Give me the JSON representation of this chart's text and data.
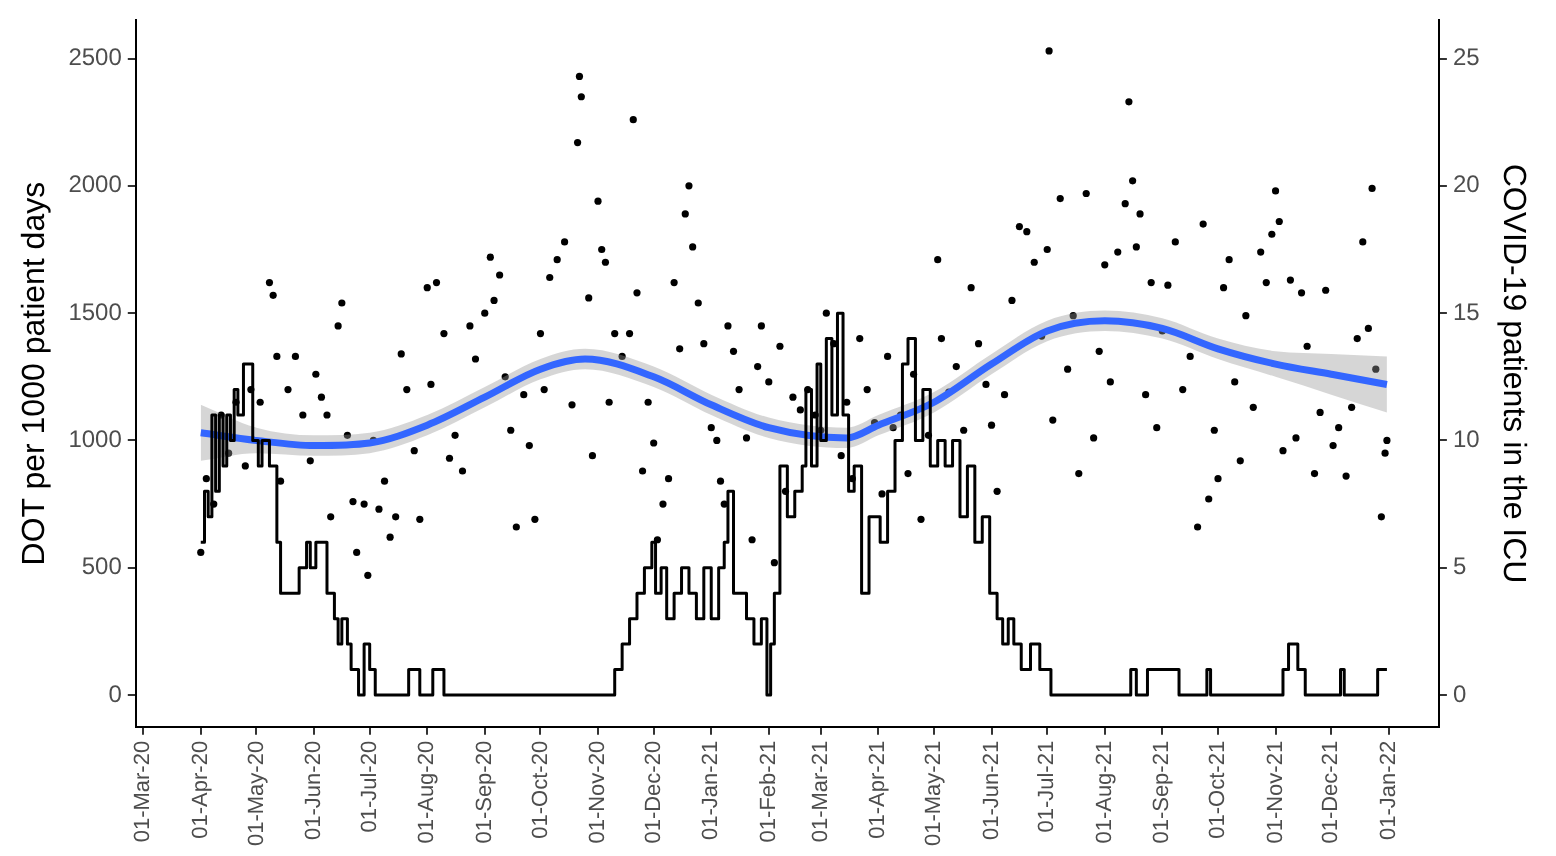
{
  "chart_data": {
    "type": "scatter",
    "ylabel": "DOT per 1000 patient days",
    "y2label": "COVID-19 patients in the ICU",
    "xlim": [
      "2020-02-26",
      "2022-01-28"
    ],
    "xticks": [
      {
        "value": "2020-03-01",
        "label": "01-Mar-20"
      },
      {
        "value": "2020-04-01",
        "label": "01-Apr-20"
      },
      {
        "value": "2020-05-01",
        "label": "01-May-20"
      },
      {
        "value": "2020-06-01",
        "label": "01-Jun-20"
      },
      {
        "value": "2020-07-01",
        "label": "01-Jul-20"
      },
      {
        "value": "2020-08-01",
        "label": "01-Aug-20"
      },
      {
        "value": "2020-09-01",
        "label": "01-Sep-20"
      },
      {
        "value": "2020-10-01",
        "label": "01-Oct-20"
      },
      {
        "value": "2020-11-01",
        "label": "01-Nov-20"
      },
      {
        "value": "2020-12-01",
        "label": "01-Dec-20"
      },
      {
        "value": "2021-01-01",
        "label": "01-Jan-21"
      },
      {
        "value": "2021-02-01",
        "label": "01-Feb-21"
      },
      {
        "value": "2021-03-01",
        "label": "01-Mar-21"
      },
      {
        "value": "2021-04-01",
        "label": "01-Apr-21"
      },
      {
        "value": "2021-05-01",
        "label": "01-May-21"
      },
      {
        "value": "2021-06-01",
        "label": "01-Jun-21"
      },
      {
        "value": "2021-07-01",
        "label": "01-Jul-21"
      },
      {
        "value": "2021-08-01",
        "label": "01-Aug-21"
      },
      {
        "value": "2021-09-01",
        "label": "01-Sep-21"
      },
      {
        "value": "2021-10-01",
        "label": "01-Oct-21"
      },
      {
        "value": "2021-11-01",
        "label": "01-Nov-21"
      },
      {
        "value": "2021-12-01",
        "label": "01-Dec-21"
      },
      {
        "value": "2022-01-01",
        "label": "01-Jan-22"
      }
    ],
    "ylim": [
      -125,
      2650
    ],
    "yticks": [
      0,
      500,
      1000,
      1500,
      2000,
      2500
    ],
    "y2lim": [
      -1.25,
      26.5
    ],
    "y2ticks": [
      0,
      5,
      10,
      15,
      20,
      25
    ],
    "grid": false,
    "legend": false,
    "series": [
      {
        "type": "scatter",
        "marker": "circle",
        "color": "#000000",
        "x": [
          "2020-04-01",
          "2020-04-04",
          "2020-04-08",
          "2020-04-12",
          "2020-04-16",
          "2020-04-20",
          "2020-04-25",
          "2020-04-28",
          "2020-05-03",
          "2020-05-08",
          "2020-05-10",
          "2020-05-12",
          "2020-05-14",
          "2020-05-18",
          "2020-05-22",
          "2020-05-26",
          "2020-05-30",
          "2020-06-02",
          "2020-06-05",
          "2020-06-08",
          "2020-06-10",
          "2020-06-14",
          "2020-06-16",
          "2020-06-19",
          "2020-06-22",
          "2020-06-24",
          "2020-06-28",
          "2020-06-30",
          "2020-07-03",
          "2020-07-06",
          "2020-07-09",
          "2020-07-12",
          "2020-07-15",
          "2020-07-18",
          "2020-07-21",
          "2020-07-25",
          "2020-07-28",
          "2020-08-01",
          "2020-08-03",
          "2020-08-06",
          "2020-08-10",
          "2020-08-13",
          "2020-08-16",
          "2020-08-20",
          "2020-08-24",
          "2020-08-27",
          "2020-09-01",
          "2020-09-04",
          "2020-09-06",
          "2020-09-09",
          "2020-09-12",
          "2020-09-15",
          "2020-09-18",
          "2020-09-22",
          "2020-09-25",
          "2020-09-28",
          "2020-10-01",
          "2020-10-03",
          "2020-10-06",
          "2020-10-10",
          "2020-10-14",
          "2020-10-18",
          "2020-10-21",
          "2020-10-22",
          "2020-10-23",
          "2020-10-27",
          "2020-10-29",
          "2020-11-01",
          "2020-11-03",
          "2020-11-05",
          "2020-11-07",
          "2020-11-10",
          "2020-11-14",
          "2020-11-18",
          "2020-11-20",
          "2020-11-22",
          "2020-11-25",
          "2020-11-28",
          "2020-12-01",
          "2020-12-03",
          "2020-12-06",
          "2020-12-09",
          "2020-12-12",
          "2020-12-15",
          "2020-12-18",
          "2020-12-20",
          "2020-12-22",
          "2020-12-25",
          "2020-12-28",
          "2021-01-01",
          "2021-01-04",
          "2021-01-06",
          "2021-01-08",
          "2021-01-10",
          "2021-01-13",
          "2021-01-16",
          "2021-01-20",
          "2021-01-23",
          "2021-01-26",
          "2021-01-28",
          "2021-02-01",
          "2021-02-04",
          "2021-02-07",
          "2021-02-10",
          "2021-02-14",
          "2021-02-18",
          "2021-02-22",
          "2021-02-26",
          "2021-03-01",
          "2021-03-04",
          "2021-03-08",
          "2021-03-12",
          "2021-03-15",
          "2021-03-18",
          "2021-03-22",
          "2021-03-26",
          "2021-03-30",
          "2021-04-03",
          "2021-04-06",
          "2021-04-09",
          "2021-04-13",
          "2021-04-17",
          "2021-04-20",
          "2021-04-24",
          "2021-04-28",
          "2021-05-03",
          "2021-05-05",
          "2021-05-09",
          "2021-05-13",
          "2021-05-17",
          "2021-05-21",
          "2021-05-25",
          "2021-05-29",
          "2021-06-01",
          "2021-06-04",
          "2021-06-08",
          "2021-06-12",
          "2021-06-16",
          "2021-06-20",
          "2021-06-24",
          "2021-06-28",
          "2021-07-01",
          "2021-07-02",
          "2021-07-04",
          "2021-07-08",
          "2021-07-12",
          "2021-07-15",
          "2021-07-18",
          "2021-07-22",
          "2021-07-26",
          "2021-07-29",
          "2021-08-01",
          "2021-08-04",
          "2021-08-08",
          "2021-08-12",
          "2021-08-14",
          "2021-08-16",
          "2021-08-18",
          "2021-08-20",
          "2021-08-23",
          "2021-08-26",
          "2021-08-29",
          "2021-09-01",
          "2021-09-04",
          "2021-09-08",
          "2021-09-12",
          "2021-09-16",
          "2021-09-20",
          "2021-09-23",
          "2021-09-26",
          "2021-09-29",
          "2021-10-01",
          "2021-10-04",
          "2021-10-07",
          "2021-10-10",
          "2021-10-13",
          "2021-10-16",
          "2021-10-20",
          "2021-10-24",
          "2021-10-27",
          "2021-10-30",
          "2021-11-01",
          "2021-11-03",
          "2021-11-05",
          "2021-11-09",
          "2021-11-12",
          "2021-11-15",
          "2021-11-18",
          "2021-11-22",
          "2021-11-25",
          "2021-11-28",
          "2021-12-02",
          "2021-12-05",
          "2021-12-09",
          "2021-12-12",
          "2021-12-15",
          "2021-12-18",
          "2021-12-21",
          "2021-12-23",
          "2021-12-25",
          "2021-12-28",
          "2021-12-30",
          "2021-12-31"
        ],
        "values": [
          560,
          850,
          750,
          1100,
          950,
          1150,
          900,
          1200,
          1150,
          1620,
          1570,
          1330,
          840,
          1200,
          1330,
          1100,
          920,
          1260,
          1170,
          1100,
          700,
          1450,
          1540,
          1020,
          760,
          560,
          750,
          470,
          1000,
          730,
          840,
          620,
          700,
          1340,
          1200,
          960,
          690,
          1600,
          1220,
          1620,
          1420,
          930,
          1020,
          880,
          1450,
          1320,
          1500,
          1720,
          1550,
          1650,
          1250,
          1040,
          660,
          1180,
          980,
          690,
          1420,
          1200,
          1640,
          1710,
          1780,
          1140,
          2170,
          2430,
          2350,
          1560,
          940,
          1940,
          1750,
          1700,
          1150,
          1420,
          1330,
          1420,
          2260,
          1580,
          880,
          1150,
          990,
          610,
          750,
          850,
          1620,
          1360,
          1890,
          2000,
          1760,
          1540,
          1380,
          1050,
          1000,
          840,
          750,
          1450,
          1350,
          1200,
          1010,
          610,
          1290,
          1450,
          1230,
          520,
          1370,
          800,
          1170,
          1120,
          1200,
          1100,
          1040,
          1500,
          1380,
          940,
          1150,
          850,
          1400,
          1200,
          1070,
          790,
          1330,
          1050,
          1100,
          870,
          1260,
          690,
          1020,
          1710,
          1400,
          1190,
          1290,
          1040,
          1600,
          1380,
          1220,
          1060,
          800,
          1180,
          1550,
          1840,
          1820,
          1700,
          1410,
          1750,
          2530,
          1080,
          1950,
          1280,
          1490,
          870,
          1970,
          1010,
          1350,
          1690,
          1230,
          1740,
          1930,
          2330,
          2020,
          1760,
          1890,
          1180,
          1620,
          1050,
          1430,
          1610,
          1780,
          1200,
          1330,
          660,
          1850,
          770,
          1040,
          850,
          1600,
          1710,
          1230,
          920,
          1490,
          1130,
          1740,
          1620,
          1810,
          1980,
          1860,
          960,
          1630,
          1010,
          1580,
          1370,
          870,
          1110,
          1590,
          980,
          1050,
          860,
          1130,
          1400,
          1780,
          1440,
          1990,
          1280,
          700,
          950,
          1000
        ]
      },
      {
        "type": "line",
        "marker": "none",
        "color": "#3366ff",
        "x": [
          "2020-04-01",
          "2020-05-01",
          "2020-06-01",
          "2020-07-01",
          "2020-08-01",
          "2020-09-01",
          "2020-10-01",
          "2020-10-25",
          "2020-12-01",
          "2021-01-01",
          "2021-02-01",
          "2021-03-15",
          "2021-04-01",
          "2021-05-01",
          "2021-06-01",
          "2021-07-01",
          "2021-08-01",
          "2021-09-01",
          "2021-10-01",
          "2021-11-01",
          "2021-12-01",
          "2021-12-31"
        ],
        "values": [
          1030,
          1000,
          980,
          990,
          1060,
          1170,
          1280,
          1320,
          1250,
          1140,
          1050,
          1010,
          1060,
          1150,
          1300,
          1430,
          1470,
          1440,
          1360,
          1300,
          1260,
          1220
        ],
        "lower": [
          920,
          950,
          940,
          950,
          1020,
          1130,
          1240,
          1280,
          1210,
          1100,
          1010,
          970,
          1020,
          1110,
          1260,
          1390,
          1430,
          1400,
          1320,
          1250,
          1180,
          1110
        ],
        "upper": [
          1140,
          1050,
          1020,
          1030,
          1100,
          1210,
          1320,
          1360,
          1290,
          1180,
          1090,
          1050,
          1100,
          1190,
          1340,
          1470,
          1510,
          1480,
          1400,
          1350,
          1340,
          1330
        ]
      },
      {
        "type": "step",
        "axis": "y2",
        "marker": "none",
        "color": "#000000",
        "x": [
          "2020-04-01",
          "2020-04-03",
          "2020-04-05",
          "2020-04-07",
          "2020-04-09",
          "2020-04-11",
          "2020-04-13",
          "2020-04-15",
          "2020-04-17",
          "2020-04-19",
          "2020-04-21",
          "2020-04-24",
          "2020-04-29",
          "2020-05-02",
          "2020-05-04",
          "2020-05-08",
          "2020-05-12",
          "2020-05-14",
          "2020-05-24",
          "2020-05-28",
          "2020-05-30",
          "2020-06-02",
          "2020-06-08",
          "2020-06-12",
          "2020-06-14",
          "2020-06-16",
          "2020-06-19",
          "2020-06-21",
          "2020-06-25",
          "2020-06-28",
          "2020-07-01",
          "2020-07-04",
          "2020-07-22",
          "2020-07-28",
          "2020-08-04",
          "2020-08-10",
          "2020-11-10",
          "2020-11-14",
          "2020-11-18",
          "2020-11-22",
          "2020-11-26",
          "2020-11-30",
          "2020-12-02",
          "2020-12-05",
          "2020-12-08",
          "2020-12-12",
          "2020-12-16",
          "2020-12-20",
          "2020-12-24",
          "2020-12-28",
          "2021-01-01",
          "2021-01-05",
          "2021-01-08",
          "2021-01-10",
          "2021-01-13",
          "2021-01-17",
          "2021-01-20",
          "2021-01-24",
          "2021-01-28",
          "2021-01-31",
          "2021-02-02",
          "2021-02-04",
          "2021-02-07",
          "2021-02-11",
          "2021-02-15",
          "2021-02-19",
          "2021-02-21",
          "2021-02-24",
          "2021-02-27",
          "2021-03-01",
          "2021-03-04",
          "2021-03-07",
          "2021-03-10",
          "2021-03-13",
          "2021-03-16",
          "2021-03-19",
          "2021-03-23",
          "2021-03-27",
          "2021-04-02",
          "2021-04-06",
          "2021-04-10",
          "2021-04-14",
          "2021-04-17",
          "2021-04-21",
          "2021-04-25",
          "2021-04-29",
          "2021-05-03",
          "2021-05-07",
          "2021-05-11",
          "2021-05-15",
          "2021-05-19",
          "2021-05-23",
          "2021-05-27",
          "2021-05-31",
          "2021-06-04",
          "2021-06-07",
          "2021-06-10",
          "2021-06-13",
          "2021-06-17",
          "2021-06-22",
          "2021-06-27",
          "2021-07-03",
          "2021-08-15",
          "2021-08-18",
          "2021-08-24",
          "2021-09-10",
          "2021-09-25",
          "2021-09-27",
          "2021-11-05",
          "2021-11-08",
          "2021-11-13",
          "2021-11-17",
          "2021-12-06",
          "2021-12-08",
          "2021-12-26",
          "2021-12-31"
        ],
        "values": [
          6,
          8,
          7,
          11,
          8,
          11,
          9,
          11,
          10,
          12,
          11,
          13,
          10,
          9,
          10,
          9,
          6,
          4,
          5,
          6,
          5,
          6,
          4,
          3,
          2,
          3,
          2,
          1,
          0,
          2,
          1,
          0,
          1,
          0,
          1,
          0,
          1,
          2,
          3,
          4,
          5,
          6,
          4,
          5,
          3,
          4,
          5,
          4,
          3,
          5,
          3,
          5,
          6,
          8,
          4,
          4,
          3,
          2,
          3,
          0,
          2,
          4,
          9,
          7,
          8,
          9,
          12,
          9,
          13,
          10,
          14,
          11,
          15,
          11,
          8,
          9,
          4,
          7,
          6,
          8,
          10,
          13,
          14,
          10,
          12,
          9,
          10,
          9,
          10,
          7,
          9,
          6,
          7,
          4,
          3,
          2,
          3,
          2,
          1,
          2,
          1,
          0,
          1,
          0,
          1,
          0,
          1,
          0,
          1,
          2,
          1,
          0,
          1,
          0,
          1,
          1
        ]
      }
    ]
  }
}
